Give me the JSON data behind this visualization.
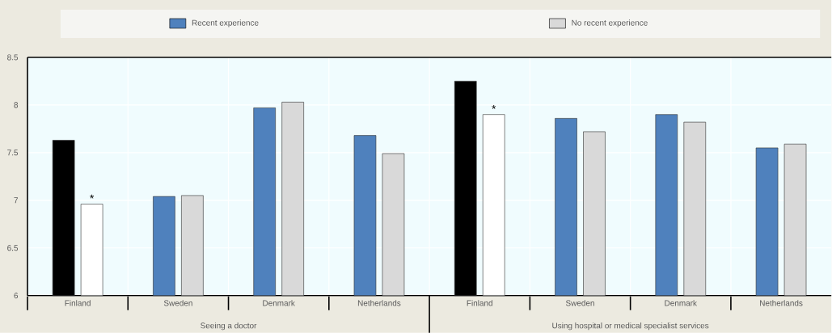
{
  "chart_data": {
    "type": "bar",
    "categories": [
      "Finland",
      "Sweden",
      "Denmark",
      "Netherlands",
      "Finland",
      "Sweden",
      "Denmark",
      "Netherlands"
    ],
    "series": [
      {
        "name": "Recent experience",
        "color": "#4f81bd",
        "colors": [
          "#000000",
          "#4f81bd",
          "#4f81bd",
          "#4f81bd",
          "#000000",
          "#4f81bd",
          "#4f81bd",
          "#4f81bd"
        ],
        "values": [
          7.63,
          7.04,
          7.97,
          7.68,
          8.25,
          7.86,
          7.9,
          7.55
        ]
      },
      {
        "name": "No recent experience",
        "color": "#d9d9d9",
        "colors": [
          "#ffffff",
          "#d9d9d9",
          "#d9d9d9",
          "#d9d9d9",
          "#ffffff",
          "#d9d9d9",
          "#d9d9d9",
          "#d9d9d9"
        ],
        "values": [
          6.96,
          7.05,
          8.03,
          7.49,
          7.9,
          7.72,
          7.82,
          7.59
        ],
        "value_labels": [
          "*",
          null,
          null,
          null,
          "*",
          null,
          null,
          null
        ]
      }
    ],
    "annotations": [
      "Seeing a doctor",
      "Using hospital or medical specialist services"
    ],
    "ylim": [
      6,
      8.5
    ],
    "yticks": [
      6,
      6.5,
      7,
      7.5,
      8,
      8.5
    ],
    "grid": true,
    "legend": "top"
  }
}
